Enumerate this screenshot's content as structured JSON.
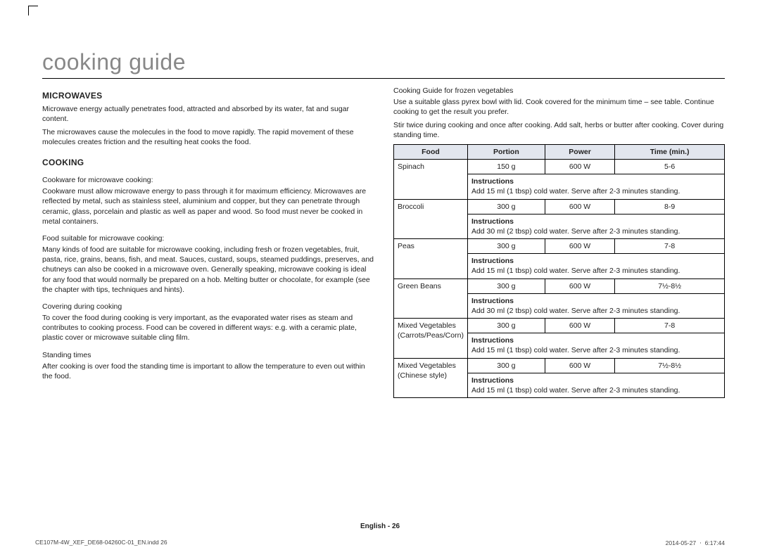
{
  "page": {
    "title": "cooking guide",
    "footer_page": "English - 26",
    "footer_left": "CE107M-4W_XEF_DE68-04260C-01_EN.indd   26",
    "footer_right": "2014-05-27   ㆍ 6:17:44"
  },
  "left": {
    "h_microwaves": "MICROWAVES",
    "mw_p1": "Microwave energy actually penetrates food, attracted and absorbed by its water, fat and sugar content.",
    "mw_p2": "The microwaves cause the molecules in the food to move rapidly. The rapid movement of these molecules creates friction and the resulting heat cooks the food.",
    "h_cooking": "COOKING",
    "s1_t": "Cookware for microwave cooking:",
    "s1_p": "Cookware must allow microwave energy to pass through it for maximum efficiency. Microwaves are reflected by metal, such as stainless steel, aluminium and copper, but they can penetrate through ceramic, glass, porcelain and plastic as well as paper and wood. So food must never be cooked in metal containers.",
    "s2_t": "Food suitable for microwave cooking:",
    "s2_p": "Many kinds of food are suitable for microwave cooking, including fresh or frozen vegetables, fruit, pasta, rice, grains, beans, fish, and meat. Sauces, custard, soups, steamed puddings, preserves, and chutneys can also be cooked in a microwave oven. Generally speaking, microwave cooking is ideal for any food that would normally be prepared on a hob. Melting butter or chocolate, for example (see the chapter with tips, techniques and hints).",
    "s3_t": "Covering during cooking",
    "s3_p": "To cover the food during cooking is very important, as the evaporated water rises as steam and contributes to cooking process. Food can be covered in different ways: e.g. with a ceramic plate, plastic cover or microwave suitable cling film.",
    "s4_t": "Standing times",
    "s4_p": "After cooking is over food the standing time is important to allow the temperature to even out within the food."
  },
  "right": {
    "guide_title": "Cooking Guide for frozen vegetables",
    "guide_p1": "Use a suitable glass pyrex bowl with lid. Cook covered for the minimum time – see table. Continue cooking to get the result you prefer.",
    "guide_p2": "Stir twice during cooking and once after cooking. Add salt, herbs or butter after cooking. Cover during standing time.",
    "th_food": "Food",
    "th_portion": "Portion",
    "th_power": "Power",
    "th_time": "Time (min.)",
    "instr_label": "Instructions",
    "rows": [
      {
        "food": "Spinach",
        "portion": "150 g",
        "power": "600 W",
        "time": "5-6",
        "instr": "Add 15 ml (1 tbsp) cold water. Serve after 2-3 minutes standing."
      },
      {
        "food": "Broccoli",
        "portion": "300 g",
        "power": "600 W",
        "time": "8-9",
        "instr": "Add 30 ml (2 tbsp) cold water. Serve after 2-3 minutes standing."
      },
      {
        "food": "Peas",
        "portion": "300 g",
        "power": "600 W",
        "time": "7-8",
        "instr": "Add 15 ml (1 tbsp) cold water. Serve after 2-3 minutes standing."
      },
      {
        "food": "Green Beans",
        "portion": "300 g",
        "power": "600 W",
        "time": "7½-8½",
        "instr": "Add 30 ml (2 tbsp) cold water. Serve after 2-3 minutes standing."
      },
      {
        "food": "Mixed Vegetables (Carrots/Peas/Corn)",
        "portion": "300 g",
        "power": "600 W",
        "time": "7-8",
        "instr": "Add 15 ml (1 tbsp) cold water. Serve after 2-3 minutes standing."
      },
      {
        "food": "Mixed Vegetables (Chinese style)",
        "portion": "300 g",
        "power": "600 W",
        "time": "7½-8½",
        "instr": "Add 15 ml (1 tbsp) cold water. Serve after 2-3 minutes standing."
      }
    ]
  }
}
